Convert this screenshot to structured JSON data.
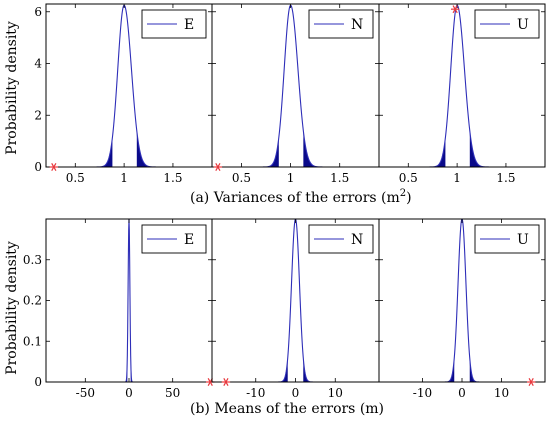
{
  "figure": {
    "ylabel": "Probability density",
    "caption_a": "(a) Variances of the errors (m",
    "caption_a_sup": "2",
    "caption_a_end": ")",
    "caption_b": "(b) Means of the errors (m)"
  },
  "colors": {
    "curve": "#2e2eb8",
    "fill": "#0a0a8a",
    "marker": "#e8383d",
    "axis": "#000000",
    "legend_line": "#2e2eb8"
  },
  "chart_data": [
    {
      "id": "a-E",
      "type": "line",
      "legend": "E",
      "xlim": [
        0.2,
        1.9
      ],
      "ylim": [
        0,
        6.3
      ],
      "xticks": [
        0.5,
        1,
        1.5
      ],
      "xtick_labels": [
        "0.5",
        "1",
        "1.5"
      ],
      "yticks": [
        0,
        2,
        4,
        6
      ],
      "ytick_labels": [
        "0",
        "2",
        "4",
        "6"
      ],
      "curve": {
        "kind": "gamma-like",
        "mode": 1.0,
        "peak": 6.25,
        "sd_left": 0.065,
        "sd_right": 0.075
      },
      "shaded_tails": [
        0.88,
        1.13
      ],
      "marker": {
        "x": 0.28,
        "y": 0
      }
    },
    {
      "id": "a-N",
      "type": "line",
      "legend": "N",
      "xlim": [
        0.2,
        1.9
      ],
      "ylim": [
        0,
        6.3
      ],
      "xticks": [
        0.5,
        1,
        1.5
      ],
      "xtick_labels": [
        "0.5",
        "1",
        "1.5"
      ],
      "yticks": [
        0,
        2,
        4,
        6
      ],
      "ytick_labels": [
        "",
        "",
        "",
        ""
      ],
      "curve": {
        "kind": "gamma-like",
        "mode": 1.0,
        "peak": 6.25,
        "sd_left": 0.065,
        "sd_right": 0.075
      },
      "shaded_tails": [
        0.88,
        1.13
      ],
      "marker": {
        "x": 0.26,
        "y": 0
      }
    },
    {
      "id": "a-U",
      "type": "line",
      "legend": "U",
      "xlim": [
        0.2,
        1.9
      ],
      "ylim": [
        0,
        6.3
      ],
      "xticks": [
        0.5,
        1,
        1.5
      ],
      "xtick_labels": [
        "0.5",
        "1",
        "1.5"
      ],
      "yticks": [
        0,
        2,
        4,
        6
      ],
      "ytick_labels": [
        "",
        "",
        "",
        ""
      ],
      "curve": {
        "kind": "gamma-like",
        "mode": 1.0,
        "peak": 6.25,
        "sd_left": 0.065,
        "sd_right": 0.075
      },
      "shaded_tails": [
        0.88,
        1.13
      ],
      "marker": {
        "x": 0.98,
        "y": 6.1
      }
    },
    {
      "id": "b-E",
      "type": "line",
      "legend": "E",
      "xlim": [
        -95,
        95
      ],
      "ylim": [
        0,
        0.4
      ],
      "xticks": [
        -50,
        0,
        50
      ],
      "xtick_labels": [
        "-50",
        "0",
        "50"
      ],
      "yticks": [
        0,
        0.1,
        0.2,
        0.3
      ],
      "ytick_labels": [
        "0",
        "0.1",
        "0.2",
        "0.3"
      ],
      "curve": {
        "kind": "normal",
        "mean": 0,
        "sd": 1.0,
        "peak": 0.4
      },
      "shaded_tails": [
        -1.96,
        1.96
      ],
      "marker": {
        "x": 93,
        "y": 0
      }
    },
    {
      "id": "b-N",
      "type": "line",
      "legend": "N",
      "xlim": [
        -21,
        21
      ],
      "ylim": [
        0,
        0.4
      ],
      "xticks": [
        -10,
        0,
        10
      ],
      "xtick_labels": [
        "-10",
        "0",
        "10"
      ],
      "yticks": [
        0,
        0.1,
        0.2,
        0.3
      ],
      "ytick_labels": [
        "",
        "",
        "",
        ""
      ],
      "curve": {
        "kind": "normal",
        "mean": 0,
        "sd": 1.0,
        "peak": 0.4
      },
      "shaded_tails": [
        -1.96,
        1.96
      ],
      "marker": {
        "x": -17.5,
        "y": 0
      }
    },
    {
      "id": "b-U",
      "type": "line",
      "legend": "U",
      "xlim": [
        -21,
        21
      ],
      "ylim": [
        0,
        0.4
      ],
      "xticks": [
        -10,
        0,
        10
      ],
      "xtick_labels": [
        "-10",
        "0",
        "10"
      ],
      "yticks": [
        0,
        0.1,
        0.2,
        0.3
      ],
      "ytick_labels": [
        "",
        "",
        "",
        ""
      ],
      "curve": {
        "kind": "normal",
        "mean": 0,
        "sd": 1.0,
        "peak": 0.4
      },
      "shaded_tails": [
        -1.96,
        1.96
      ],
      "marker": {
        "x": 17.5,
        "y": 0
      }
    }
  ]
}
